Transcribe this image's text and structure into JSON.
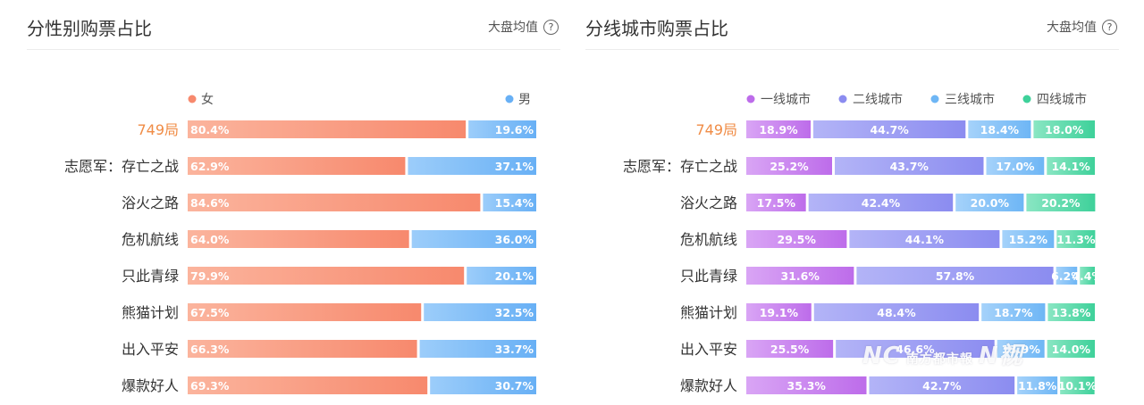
{
  "panels": [
    {
      "title": "分性别购票占比",
      "avg_label": "大盘均值",
      "help_icon": "question-circle-icon"
    },
    {
      "title": "分线城市购票占比",
      "avg_label": "大盘均值",
      "help_icon": "question-circle-icon"
    }
  ],
  "watermark": {
    "left": "NC",
    "middle": "南方都市報",
    "right": "N视"
  },
  "chart_data": [
    {
      "type": "bar",
      "stacked": "percent",
      "orientation": "horizontal",
      "title": "分性别购票占比",
      "legend_position": "top",
      "categories": [
        "749局",
        "志愿军：存亡之战",
        "浴火之路",
        "危机航线",
        "只此青绿",
        "熊猫计划",
        "出入平安",
        "爆款好人"
      ],
      "highlight_category": "749局",
      "highlight_color": "#f08c46",
      "series": [
        {
          "name": "女",
          "color": "#f7896d",
          "color_light": "#fbb49d",
          "values": [
            80.4,
            62.9,
            84.6,
            64.0,
            79.9,
            67.5,
            66.3,
            69.3
          ]
        },
        {
          "name": "男",
          "color": "#68b0f5",
          "color_light": "#9ccdfa",
          "values": [
            19.6,
            37.1,
            15.4,
            36.0,
            20.1,
            32.5,
            33.7,
            30.7
          ]
        }
      ]
    },
    {
      "type": "bar",
      "stacked": "percent",
      "orientation": "horizontal",
      "title": "分线城市购票占比",
      "legend_position": "top",
      "categories": [
        "749局",
        "志愿军：存亡之战",
        "浴火之路",
        "危机航线",
        "只此青绿",
        "熊猫计划",
        "出入平安",
        "爆款好人"
      ],
      "highlight_category": "749局",
      "highlight_color": "#f08c46",
      "series": [
        {
          "name": "一线城市",
          "color": "#bd6cea",
          "color_light": "#d9a5f5",
          "values": [
            18.9,
            25.2,
            17.5,
            29.5,
            31.6,
            19.1,
            25.5,
            35.3
          ]
        },
        {
          "name": "二线城市",
          "color": "#8b8cf0",
          "color_light": "#b3b4f7",
          "values": [
            44.7,
            43.7,
            42.4,
            44.1,
            57.8,
            48.4,
            46.6,
            42.7
          ]
        },
        {
          "name": "三线城市",
          "color": "#6eb6f5",
          "color_light": "#a5d2fa",
          "values": [
            18.4,
            17.0,
            20.0,
            15.2,
            6.2,
            18.7,
            13.9,
            11.8
          ]
        },
        {
          "name": "四线城市",
          "color": "#3ed19a",
          "color_light": "#8ae6c3",
          "values": [
            18.0,
            14.1,
            20.2,
            11.3,
            4.4,
            13.8,
            14.0,
            10.1
          ]
        }
      ]
    }
  ]
}
